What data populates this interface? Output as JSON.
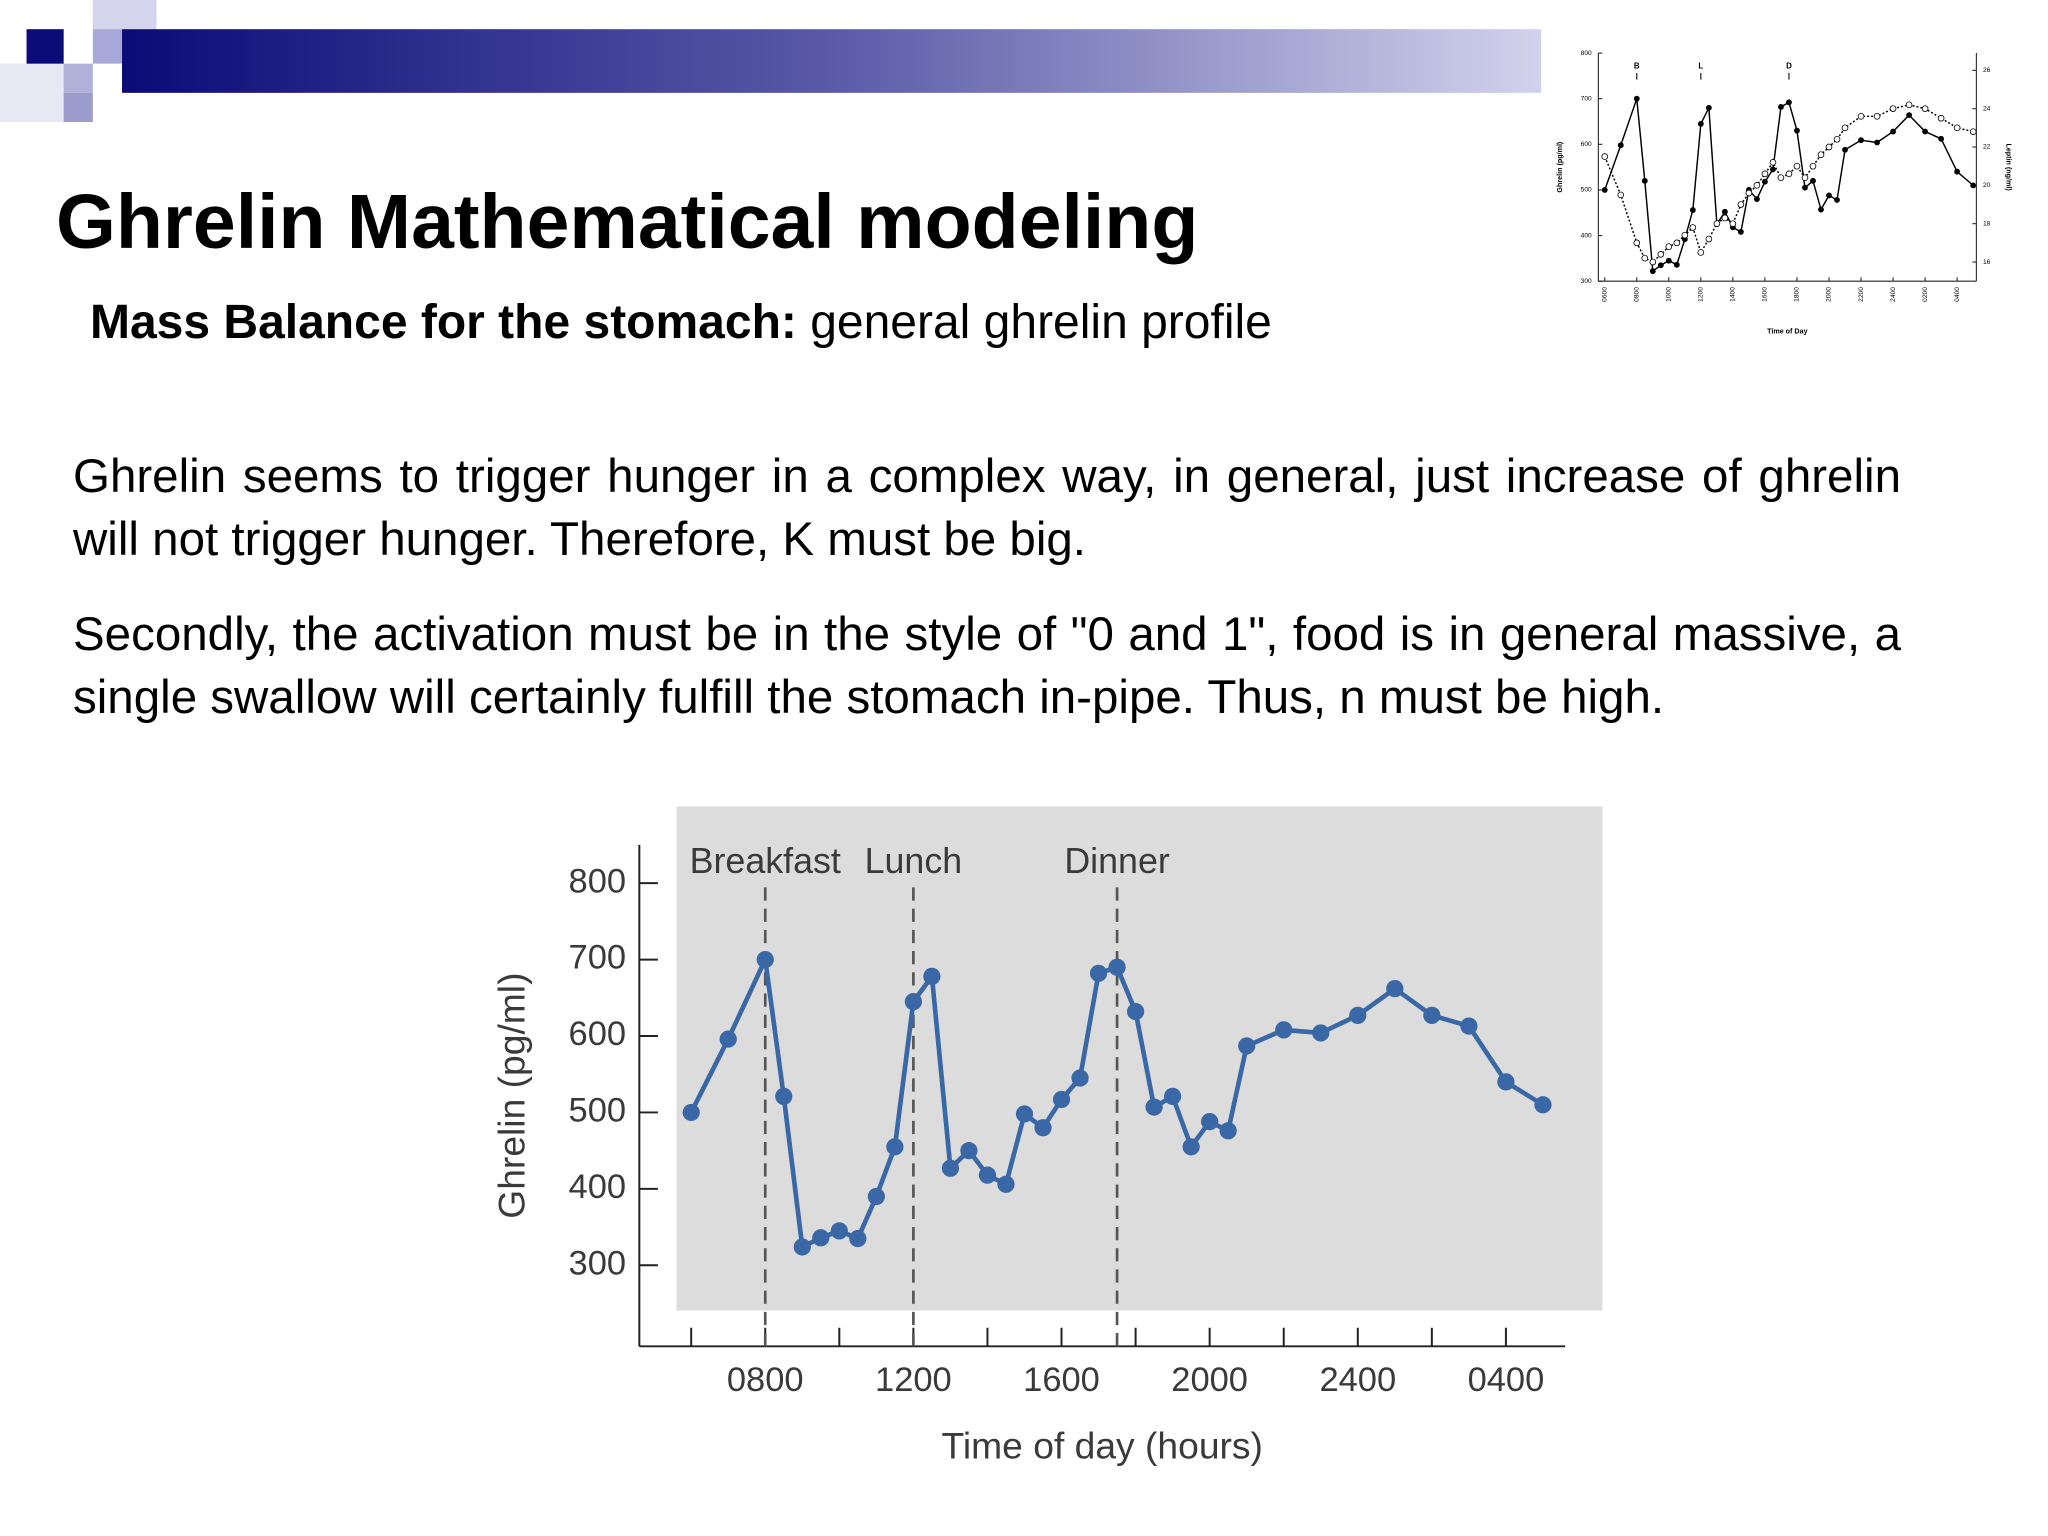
{
  "header": {
    "title": "Ghrelin Mathematical modeling",
    "subtitle_bold": "Mass Balance for the stomach:",
    "subtitle": "general ghrelin profile"
  },
  "body": {
    "paragraphs": [
      "Ghrelin seems to trigger hunger in a complex way, in general, just increase of ghrelin will not trigger hunger. Therefore, K must be big.",
      "Secondly, the activation must be in the style of \"0 and 1\", food is in general massive, a single swallow will certainly fulfill the stomach in-pipe. Thus, n must be high."
    ]
  },
  "chart_data": [
    {
      "type": "line",
      "x_label": "Time of day (hours)",
      "y_label": "Ghrelin (pg/ml)",
      "xlim": [
        4.6,
        29.6
      ],
      "ylim": [
        194,
        850
      ],
      "xticks": [
        {
          "value": 8,
          "label": "0800"
        },
        {
          "value": 12,
          "label": "1200"
        },
        {
          "value": 16,
          "label": "1600"
        },
        {
          "value": 20,
          "label": "2000"
        },
        {
          "value": 24,
          "label": "2400"
        },
        {
          "value": 28,
          "label": "0400"
        }
      ],
      "minor_xticks": [
        6,
        10,
        14,
        18,
        22,
        26
      ],
      "yticks": [
        300,
        400,
        500,
        600,
        700,
        800
      ],
      "annotations": [
        {
          "text": "Breakfast",
          "x": 8
        },
        {
          "text": "Lunch",
          "x": 12
        },
        {
          "text": "Dinner",
          "x": 17.5
        }
      ],
      "x": [
        6,
        7,
        8,
        8.5,
        9,
        9.5,
        10,
        10.5,
        11,
        11.5,
        12,
        12.5,
        13,
        13.5,
        14,
        14.5,
        15,
        15.5,
        16,
        16.5,
        17,
        17.5,
        18,
        18.5,
        19,
        19.5,
        20,
        20.5,
        21,
        22,
        23,
        24,
        25,
        26,
        27,
        28,
        29
      ],
      "series": [
        {
          "color": "#3a68a6",
          "marker": "filled",
          "dashed": false,
          "values": [
            500,
            596,
            700,
            521,
            324,
            336,
            345,
            335,
            390,
            455,
            645,
            678,
            427,
            450,
            418,
            406,
            498,
            480,
            517,
            545,
            682,
            690,
            632,
            507,
            521,
            455,
            488,
            476,
            587,
            608,
            604,
            627,
            662,
            627,
            613,
            540,
            510
          ]
        }
      ]
    },
    {
      "type": "line",
      "x_label": "Time of Day",
      "y_label": "Ghrelin (pg/ml)",
      "y2_label": "Leptin (ng/ml)",
      "xlim": [
        5.6,
        29.2
      ],
      "ylim": [
        300,
        800
      ],
      "y2lim": [
        15,
        26.9
      ],
      "xticks": [
        {
          "value": 6,
          "label": "0600"
        },
        {
          "value": 8,
          "label": "0800"
        },
        {
          "value": 10,
          "label": "1000"
        },
        {
          "value": 12,
          "label": "1200"
        },
        {
          "value": 14,
          "label": "1400"
        },
        {
          "value": 16,
          "label": "1600"
        },
        {
          "value": 18,
          "label": "1800"
        },
        {
          "value": 20,
          "label": "2000"
        },
        {
          "value": 22,
          "label": "2200"
        },
        {
          "value": 24,
          "label": "2400"
        },
        {
          "value": 26,
          "label": "0200"
        },
        {
          "value": 28,
          "label": "0400"
        }
      ],
      "yticks": [
        300,
        400,
        500,
        600,
        700,
        800
      ],
      "y2ticks": [
        16,
        18,
        20,
        22,
        24,
        26
      ],
      "annotations": [
        {
          "text": "B",
          "x": 8
        },
        {
          "text": "L",
          "x": 12
        },
        {
          "text": "D",
          "x": 17.5
        }
      ],
      "x": [
        6,
        7,
        8,
        8.5,
        9,
        9.5,
        10,
        10.5,
        11,
        11.5,
        12,
        12.5,
        13,
        13.5,
        14,
        14.5,
        15,
        15.5,
        16,
        16.5,
        17,
        17.5,
        18,
        18.5,
        19,
        19.5,
        20,
        20.5,
        21,
        22,
        23,
        24,
        25,
        26,
        27,
        28,
        29
      ],
      "series": [
        {
          "color": "#000000",
          "marker": "filled",
          "dashed": false,
          "values": [
            500,
            598,
            700,
            520,
            322,
            335,
            345,
            336,
            392,
            456,
            645,
            680,
            425,
            452,
            418,
            408,
            500,
            480,
            518,
            545,
            682,
            692,
            630,
            505,
            520,
            457,
            488,
            478,
            588,
            609,
            604,
            628,
            664,
            628,
            612,
            540,
            510
          ]
        },
        {
          "color": "#000000",
          "marker": "open",
          "dashed": true,
          "axis": "y2",
          "values": [
            21.5,
            19.5,
            17,
            16.2,
            16,
            16.4,
            16.8,
            17,
            17.4,
            17.8,
            16.5,
            17.2,
            18,
            18.3,
            18,
            19,
            19.6,
            20,
            20.6,
            21.2,
            20.4,
            20.6,
            21,
            20.4,
            21,
            21.6,
            22,
            22.4,
            23,
            23.6,
            23.6,
            24,
            24.2,
            24,
            23.5,
            23,
            22.8
          ]
        }
      ]
    }
  ]
}
